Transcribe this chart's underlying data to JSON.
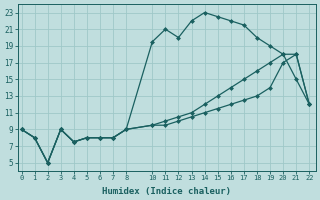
{
  "xlabel": "Humidex (Indice chaleur)",
  "bg_color": "#c0dede",
  "grid_color": "#9fc8c8",
  "line_color": "#1a6060",
  "x_ticks": [
    0,
    1,
    2,
    3,
    4,
    5,
    6,
    7,
    8,
    10,
    11,
    12,
    13,
    14,
    15,
    16,
    17,
    18,
    19,
    20,
    21,
    22
  ],
  "y_ticks": [
    5,
    7,
    9,
    11,
    13,
    15,
    17,
    19,
    21,
    23
  ],
  "xlim": [
    -0.3,
    22.5
  ],
  "ylim": [
    4.0,
    24.0
  ],
  "line1_x": [
    0,
    1,
    2,
    3,
    4,
    5,
    6,
    7,
    8,
    10,
    11,
    12,
    13,
    14,
    15,
    16,
    17,
    18,
    19,
    20,
    21,
    22
  ],
  "line1_y": [
    9,
    8,
    5,
    9,
    7.5,
    8,
    8,
    8,
    9,
    19.5,
    21,
    20,
    22,
    23,
    22.5,
    22,
    21.5,
    20,
    19,
    18,
    18,
    12
  ],
  "line2_x": [
    0,
    1,
    2,
    3,
    4,
    5,
    6,
    7,
    8,
    10,
    11,
    12,
    13,
    14,
    15,
    16,
    17,
    18,
    19,
    20,
    21,
    22
  ],
  "line2_y": [
    9,
    8,
    5,
    9,
    7.5,
    8,
    8,
    8,
    9,
    9.5,
    10,
    10.5,
    11,
    12,
    13,
    14,
    15,
    16,
    17,
    18,
    15,
    12
  ],
  "line3_x": [
    0,
    1,
    2,
    3,
    4,
    5,
    6,
    7,
    8,
    10,
    11,
    12,
    13,
    14,
    15,
    16,
    17,
    18,
    19,
    20,
    21,
    22
  ],
  "line3_y": [
    9,
    8,
    5,
    9,
    7.5,
    8,
    8,
    8,
    9,
    9.5,
    9.5,
    10,
    10.5,
    11,
    11.5,
    12,
    12.5,
    13,
    14,
    17,
    18,
    12
  ]
}
